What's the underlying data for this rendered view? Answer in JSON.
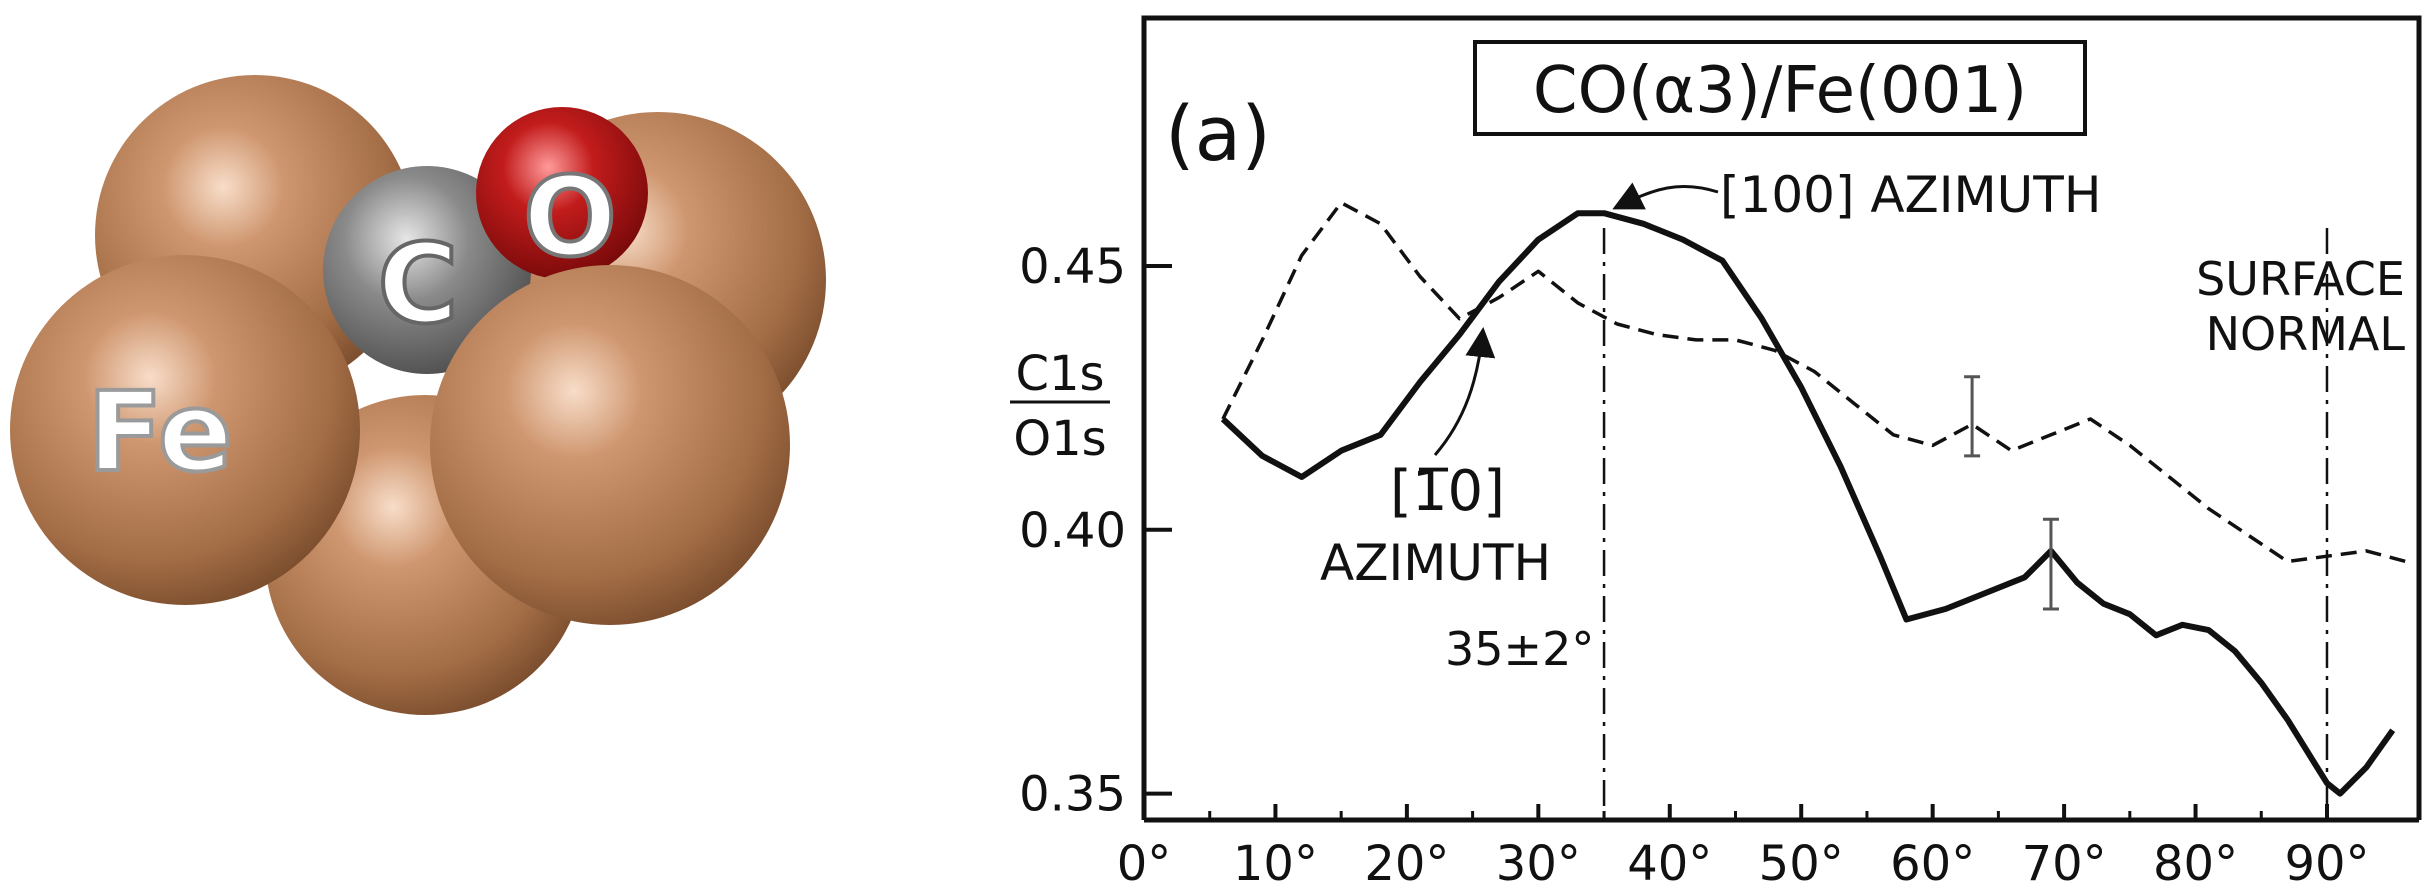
{
  "molecule": {
    "fe_label": "Fe",
    "c_label": "C",
    "o_label": "O",
    "colors": {
      "fe": "#b07a52",
      "c": "#7a7a7a",
      "o": "#b01818"
    }
  },
  "chart_data": {
    "type": "line",
    "title": "CO(α3)/Fe(001)",
    "panel_label": "(a)",
    "ylabel_top": "C1s",
    "ylabel_bottom": "O1s",
    "xlim": [
      0,
      97
    ],
    "ylim": [
      0.345,
      0.497
    ],
    "x_ticks": [
      0,
      10,
      20,
      30,
      40,
      50,
      60,
      70,
      80,
      90
    ],
    "x_tick_labels": [
      "0°",
      "10°",
      "20°",
      "30°",
      "40°",
      "50°",
      "60°",
      "70°",
      "80°",
      "90°"
    ],
    "y_ticks": [
      0.35,
      0.4,
      0.45
    ],
    "y_tick_labels": [
      "0.35",
      "0.40",
      "0.45"
    ],
    "grid": false,
    "series": [
      {
        "style": "solid",
        "x": [
          6,
          9,
          12,
          15,
          18,
          21,
          24,
          27,
          30,
          33,
          35,
          38,
          41,
          44,
          47,
          50,
          53,
          56,
          58,
          61,
          64,
          67,
          69,
          71,
          73,
          75,
          77,
          79,
          81,
          83,
          85,
          87,
          89,
          90,
          91,
          93,
          95
        ],
        "y": [
          0.421,
          0.414,
          0.41,
          0.415,
          0.418,
          0.428,
          0.437,
          0.447,
          0.455,
          0.46,
          0.46,
          0.458,
          0.455,
          0.451,
          0.44,
          0.427,
          0.412,
          0.395,
          0.383,
          0.385,
          0.388,
          0.391,
          0.396,
          0.39,
          0.386,
          0.384,
          0.38,
          0.382,
          0.381,
          0.377,
          0.371,
          0.364,
          0.356,
          0.352,
          0.35,
          0.355,
          0.362
        ]
      },
      {
        "style": "dashed",
        "x": [
          6,
          9,
          12,
          15,
          18,
          21,
          24,
          27,
          30,
          33,
          36,
          39,
          42,
          45,
          48,
          51,
          54,
          57,
          60,
          63,
          66,
          69,
          72,
          75,
          78,
          81,
          84,
          87,
          90,
          93,
          96
        ],
        "y": [
          0.421,
          0.436,
          0.452,
          0.462,
          0.458,
          0.448,
          0.44,
          0.444,
          0.449,
          0.443,
          0.439,
          0.437,
          0.436,
          0.436,
          0.434,
          0.43,
          0.424,
          0.418,
          0.416,
          0.42,
          0.415,
          0.418,
          0.421,
          0.416,
          0.41,
          0.404,
          0.399,
          0.394,
          0.395,
          0.396,
          0.394
        ]
      }
    ],
    "error_bars": [
      {
        "x": 63,
        "y": 0.422,
        "low": 0.414,
        "high": 0.429
      },
      {
        "x": 69,
        "y": 0.394,
        "low": 0.385,
        "high": 0.402
      }
    ],
    "vlines": [
      35,
      90
    ],
    "annotations": {
      "azimuth_100": "[100] AZIMUTH",
      "azimuth_110_top": "[1̅0]",
      "azimuth_110_bottom": "AZIMUTH",
      "angle": "35±2°",
      "normal_top": "SURFACE",
      "normal_bottom": "NORMAL"
    }
  }
}
